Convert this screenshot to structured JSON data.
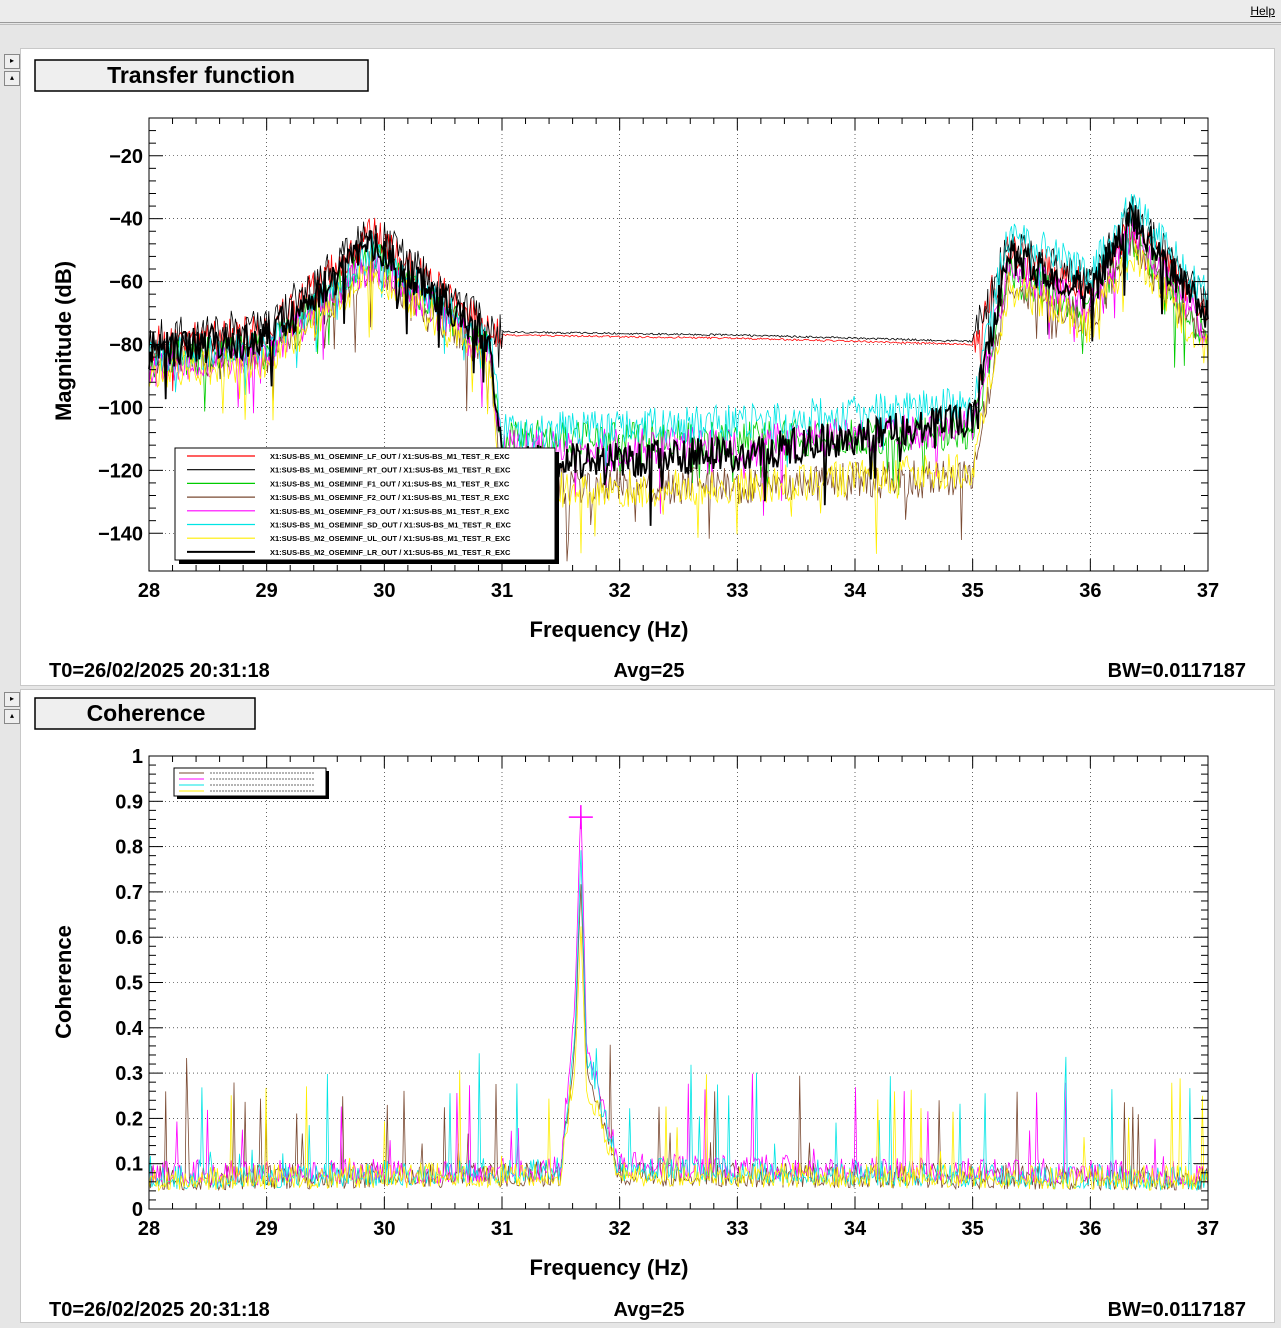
{
  "menu": {
    "help_label": "Help"
  },
  "panels": [
    {
      "title": "Transfer function",
      "footer": {
        "t0": "T0=26/02/2025 20:31:18",
        "avg": "Avg=25",
        "bw": "BW=0.0117187"
      }
    },
    {
      "title": "Coherence",
      "footer": {
        "t0": "T0=26/02/2025 20:31:18",
        "avg": "Avg=25",
        "bw": "BW=0.0117187"
      }
    }
  ],
  "chart_data": [
    {
      "type": "line",
      "xlabel": "Frequency (Hz)",
      "ylabel": "Magnitude (dB)",
      "xlim": [
        28,
        37
      ],
      "ylim": [
        -152,
        -8
      ],
      "xticks": [
        "28",
        "29",
        "30",
        "31",
        "32",
        "33",
        "34",
        "35",
        "36",
        "37"
      ],
      "yticks": [
        "−20",
        "−40",
        "−60",
        "−80",
        "−100",
        "−120",
        "−140"
      ],
      "ytick_values": [
        -20,
        -40,
        -60,
        -80,
        -100,
        -120,
        -140
      ],
      "grid": true,
      "legend_position": "bottom-left",
      "series": [
        {
          "name": "X1:SUS-BS_M1_OSEMINF_LF_OUT / X1:SUS-BS_M1_TEST_R_EXC",
          "color": "#ff0000",
          "x": [
            28,
            29,
            29.9,
            30.9,
            31.0,
            33.0,
            35.0,
            35.3,
            36.0,
            36.35,
            37
          ],
          "y": [
            -80,
            -76,
            -45,
            -76,
            -77,
            -78,
            -80,
            -50,
            -62,
            -42,
            -70
          ]
        },
        {
          "name": "X1:SUS-BS_M1_OSEMINF_RT_OUT / X1:SUS-BS_M1_TEST_R_EXC",
          "color": "#000000",
          "x": [
            28,
            29,
            29.9,
            30.9,
            31.0,
            33.0,
            35.0,
            35.3,
            36.0,
            36.35,
            37
          ],
          "y": [
            -78,
            -74,
            -44,
            -75,
            -76,
            -77,
            -79,
            -48,
            -60,
            -38,
            -68
          ]
        },
        {
          "name": "X1:SUS-BS_M1_OSEMINF_F1_OUT / X1:SUS-BS_M1_TEST_R_EXC",
          "color": "#00cc00",
          "x": [
            28,
            29,
            29.9,
            30.9,
            31.0,
            33.0,
            35.0,
            35.3,
            36.0,
            36.35,
            37
          ],
          "y": [
            -85,
            -82,
            -52,
            -82,
            -110,
            -110,
            -108,
            -58,
            -70,
            -46,
            -78
          ]
        },
        {
          "name": "X1:SUS-BS_M1_OSEMINF_F2_OUT / X1:SUS-BS_M1_TEST_R_EXC",
          "color": "#7a4a32",
          "x": [
            28,
            29,
            29.9,
            30.9,
            31.0,
            33.0,
            35.0,
            35.3,
            36.0,
            36.35,
            37
          ],
          "y": [
            -86,
            -84,
            -55,
            -84,
            -125,
            -125,
            -122,
            -60,
            -72,
            -48,
            -80
          ]
        },
        {
          "name": "X1:SUS-BS_M1_OSEMINF_F3_OUT / X1:SUS-BS_M1_TEST_R_EXC",
          "color": "#ff00ff",
          "x": [
            28,
            29,
            29.9,
            30.9,
            31.0,
            33.0,
            35.0,
            35.3,
            36.0,
            36.35,
            37
          ],
          "y": [
            -88,
            -84,
            -54,
            -84,
            -113,
            -112,
            -106,
            -56,
            -68,
            -44,
            -76
          ]
        },
        {
          "name": "X1:SUS-BS_M1_OSEMINF_SD_OUT / X1:SUS-BS_M1_TEST_R_EXC",
          "color": "#00e5e5",
          "x": [
            28,
            29,
            29.9,
            30.9,
            31.0,
            33.0,
            35.0,
            35.3,
            36.0,
            36.35,
            37
          ],
          "y": [
            -84,
            -80,
            -50,
            -80,
            -108,
            -105,
            -99,
            -45,
            -57,
            -36,
            -65
          ]
        },
        {
          "name": "X1:SUS-BS_M2_OSEMINF_UL_OUT / X1:SUS-BS_M1_TEST_R_EXC",
          "color": "#ffee00",
          "x": [
            28,
            29,
            29.9,
            30.9,
            31.0,
            33.0,
            35.0,
            35.3,
            36.0,
            36.35,
            37
          ],
          "y": [
            -88,
            -86,
            -56,
            -86,
            -127,
            -125,
            -120,
            -62,
            -74,
            -50,
            -82
          ]
        },
        {
          "name": "X1:SUS-BS_M2_OSEMINF_LR_OUT / X1:SUS-BS_M1_TEST_R_EXC",
          "color": "#000000",
          "x": [
            28,
            29,
            29.9,
            30.9,
            31.0,
            33.0,
            35.0,
            35.3,
            36.0,
            36.35,
            37
          ],
          "y": [
            -82,
            -78,
            -48,
            -78,
            -118,
            -115,
            -104,
            -52,
            -64,
            -40,
            -72
          ]
        }
      ]
    },
    {
      "type": "line",
      "xlabel": "Frequency (Hz)",
      "ylabel": "Coherence",
      "xlim": [
        28,
        37
      ],
      "ylim": [
        0,
        1
      ],
      "xticks": [
        "28",
        "29",
        "30",
        "31",
        "32",
        "33",
        "34",
        "35",
        "36",
        "37"
      ],
      "yticks": [
        "0",
        "0.1",
        "0.2",
        "0.3",
        "0.4",
        "0.5",
        "0.6",
        "0.7",
        "0.8",
        "0.9",
        "1"
      ],
      "ytick_values": [
        0,
        0.1,
        0.2,
        0.3,
        0.4,
        0.5,
        0.6,
        0.7,
        0.8,
        0.9,
        1
      ],
      "grid": true,
      "legend_position": "top-left",
      "series": [
        {
          "name": "",
          "color": "#7a4a32",
          "x": [
            28,
            31.5,
            31.62,
            31.67,
            31.72,
            32,
            37
          ],
          "y": [
            0.04,
            0.05,
            0.35,
            0.72,
            0.3,
            0.05,
            0.04
          ]
        },
        {
          "name": "",
          "color": "#ff00ff",
          "x": [
            28,
            31.5,
            31.62,
            31.67,
            31.72,
            32,
            37
          ],
          "y": [
            0.05,
            0.06,
            0.45,
            0.89,
            0.35,
            0.07,
            0.05
          ]
        },
        {
          "name": "",
          "color": "#00e5e5",
          "x": [
            28,
            31.5,
            31.62,
            31.67,
            31.72,
            32,
            37
          ],
          "y": [
            0.04,
            0.06,
            0.38,
            0.78,
            0.32,
            0.06,
            0.04
          ]
        },
        {
          "name": "",
          "color": "#ffee00",
          "x": [
            28,
            31.5,
            31.62,
            31.67,
            31.72,
            32,
            37
          ],
          "y": [
            0.04,
            0.05,
            0.3,
            0.62,
            0.25,
            0.05,
            0.04
          ]
        }
      ],
      "marker": {
        "x": 31.67,
        "y": 0.865
      }
    }
  ]
}
